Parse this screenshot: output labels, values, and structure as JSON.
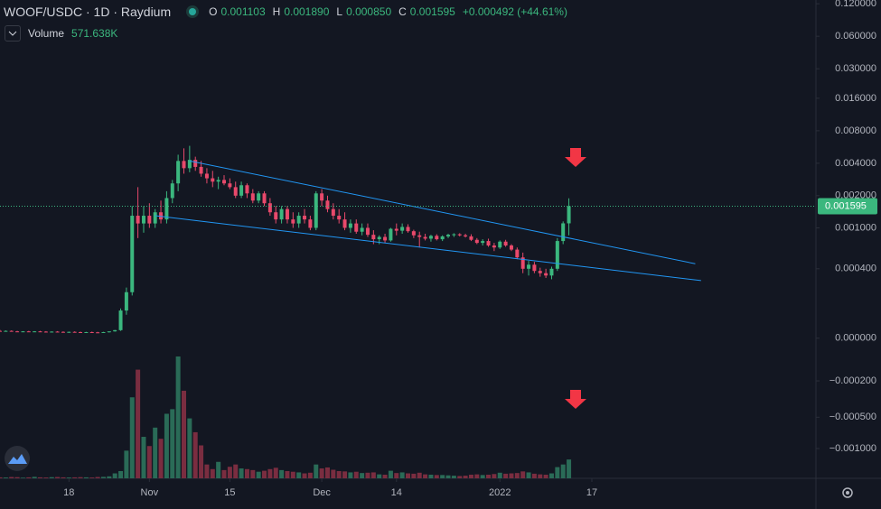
{
  "chart_data": {
    "type": "candlestick",
    "title": "WOOF/USDC · 1D · Raydium",
    "ohlc_letters": [
      "O",
      "H",
      "L",
      "C"
    ],
    "ohlc_labels": [
      "0.001103",
      "0.001890",
      "0.000850",
      "0.001595"
    ],
    "change_label": "+0.000492 (+44.61%)",
    "volume_name": "Volume",
    "volume_label": "571.638K",
    "x": [
      "2021-10-06",
      "2021-10-07",
      "2021-10-08",
      "2021-10-09",
      "2021-10-10",
      "2021-10-11",
      "2021-10-12",
      "2021-10-13",
      "2021-10-14",
      "2021-10-15",
      "2021-10-16",
      "2021-10-17",
      "2021-10-18",
      "2021-10-19",
      "2021-10-20",
      "2021-10-21",
      "2021-10-22",
      "2021-10-23",
      "2021-10-24",
      "2021-10-25",
      "2021-10-26",
      "2021-10-27",
      "2021-10-28",
      "2021-10-29",
      "2021-10-30",
      "2021-10-31",
      "2021-11-01",
      "2021-11-02",
      "2021-11-03",
      "2021-11-04",
      "2021-11-05",
      "2021-11-06",
      "2021-11-07",
      "2021-11-08",
      "2021-11-09",
      "2021-11-10",
      "2021-11-11",
      "2021-11-12",
      "2021-11-13",
      "2021-11-14",
      "2021-11-15",
      "2021-11-16",
      "2021-11-17",
      "2021-11-18",
      "2021-11-19",
      "2021-11-20",
      "2021-11-21",
      "2021-11-22",
      "2021-11-23",
      "2021-11-24",
      "2021-11-25",
      "2021-11-26",
      "2021-11-27",
      "2021-11-28",
      "2021-11-29",
      "2021-11-30",
      "2021-12-01",
      "2021-12-02",
      "2021-12-03",
      "2021-12-04",
      "2021-12-05",
      "2021-12-06",
      "2021-12-07",
      "2021-12-08",
      "2021-12-09",
      "2021-12-10",
      "2021-12-11",
      "2021-12-12",
      "2021-12-13",
      "2021-12-14",
      "2021-12-15",
      "2021-12-16",
      "2021-12-17",
      "2021-12-18",
      "2021-12-19",
      "2021-12-20",
      "2021-12-21",
      "2021-12-22",
      "2021-12-23",
      "2021-12-24",
      "2021-12-25",
      "2021-12-26",
      "2021-12-27",
      "2021-12-28",
      "2021-12-29",
      "2021-12-30",
      "2021-12-31",
      "2022-01-01",
      "2022-01-02",
      "2022-01-03",
      "2022-01-04",
      "2022-01-05",
      "2022-01-06",
      "2022-01-07",
      "2022-01-08",
      "2022-01-09",
      "2022-01-10",
      "2022-01-11",
      "2022-01-12",
      "2022-01-13"
    ],
    "open": [
      3e-05,
      2.9e-05,
      3e-05,
      2.8e-05,
      2.7e-05,
      2.8e-05,
      2.6e-05,
      2.8e-05,
      2.7e-05,
      2.5e-05,
      2.7e-05,
      2.6e-05,
      2.4e-05,
      2.6e-05,
      2.5e-05,
      2.3e-05,
      2.5e-05,
      2.4e-05,
      2.3e-05,
      2.5e-05,
      2.8e-05,
      3.3e-05,
      0.00012,
      0.00022,
      0.0013,
      0.0011,
      0.0013,
      0.0011,
      0.0014,
      0.0012,
      0.0019,
      0.0026,
      0.0042,
      0.0036,
      0.0043,
      0.0037,
      0.0032,
      0.0029,
      0.0027,
      0.0028,
      0.0026,
      0.0024,
      0.002,
      0.0025,
      0.0021,
      0.0018,
      0.0021,
      0.0017,
      0.0014,
      0.0012,
      0.0015,
      0.0012,
      0.0011,
      0.0013,
      0.0012,
      0.001,
      0.0021,
      0.0018,
      0.0015,
      0.0013,
      0.0012,
      0.001,
      0.0011,
      0.00092,
      0.001,
      0.00086,
      0.00078,
      0.00082,
      0.00076,
      0.00098,
      0.00094,
      0.00102,
      0.00093,
      0.00085,
      0.00082,
      0.00079,
      0.00084,
      0.00078,
      0.00083,
      0.00086,
      0.00087,
      0.00085,
      0.00083,
      0.00077,
      0.00072,
      0.00075,
      0.00068,
      0.00065,
      0.00074,
      0.00068,
      0.00062,
      0.00052,
      0.0004,
      0.00044,
      0.00038,
      0.00036,
      0.00034,
      0.0004,
      0.00075,
      0.001103
    ],
    "high": [
      3.4e-05,
      3.2e-05,
      3.2e-05,
      3e-05,
      2.9e-05,
      3e-05,
      2.9e-05,
      3e-05,
      2.9e-05,
      2.8e-05,
      2.9e-05,
      2.8e-05,
      2.7e-05,
      2.8e-05,
      2.7e-05,
      2.6e-05,
      2.7e-05,
      2.6e-05,
      2.6e-05,
      2.7e-05,
      3.4e-05,
      0.00013,
      0.00025,
      0.0016,
      0.0024,
      0.0016,
      0.0017,
      0.0015,
      0.0018,
      0.0022,
      0.0028,
      0.0048,
      0.0055,
      0.0058,
      0.0046,
      0.0042,
      0.0036,
      0.0034,
      0.003,
      0.0031,
      0.0029,
      0.0027,
      0.0027,
      0.0026,
      0.0023,
      0.0022,
      0.0022,
      0.0019,
      0.0016,
      0.0016,
      0.0016,
      0.0014,
      0.0014,
      0.0015,
      0.0013,
      0.0022,
      0.0023,
      0.002,
      0.0017,
      0.0015,
      0.0014,
      0.0012,
      0.0012,
      0.0011,
      0.0011,
      0.00095,
      0.00085,
      0.00088,
      0.001,
      0.0011,
      0.0011,
      0.00108,
      0.00096,
      0.00092,
      0.00088,
      0.00086,
      0.00087,
      0.00085,
      0.00088,
      0.00089,
      0.00089,
      0.00088,
      0.00087,
      0.0008,
      0.00078,
      0.00079,
      0.00072,
      0.00076,
      0.00077,
      0.0007,
      0.00065,
      0.00058,
      0.00048,
      0.00047,
      0.00041,
      0.0004,
      0.00042,
      0.0008,
      0.00115,
      0.00189
    ],
    "low": [
      2.7e-05,
      2.7e-05,
      2.8e-05,
      2.6e-05,
      2.5e-05,
      2.6e-05,
      2.5e-05,
      2.6e-05,
      2.4e-05,
      2.4e-05,
      2.5e-05,
      2.3e-05,
      2.2e-05,
      2.4e-05,
      2.2e-05,
      2.2e-05,
      2.3e-05,
      2.2e-05,
      2.2e-05,
      2.3e-05,
      2.7e-05,
      3e-05,
      0.0001,
      0.0002,
      0.0008,
      0.0009,
      0.001,
      0.001,
      0.0011,
      0.0011,
      0.0017,
      0.0022,
      0.0032,
      0.0033,
      0.0034,
      0.003,
      0.0026,
      0.0024,
      0.0023,
      0.0025,
      0.0023,
      0.0019,
      0.0019,
      0.0019,
      0.0017,
      0.0017,
      0.0016,
      0.0013,
      0.0011,
      0.0011,
      0.0011,
      0.001,
      0.001,
      0.0011,
      0.00095,
      0.00095,
      0.0016,
      0.0014,
      0.0012,
      0.0011,
      0.00095,
      0.0009,
      0.00088,
      0.00085,
      0.00082,
      0.0007,
      0.0007,
      0.00072,
      0.00074,
      0.00085,
      0.00088,
      0.0009,
      0.0008,
      0.00065,
      0.00076,
      0.00074,
      0.00076,
      0.00075,
      0.0008,
      0.00082,
      0.00083,
      0.00081,
      0.00075,
      0.0007,
      0.00068,
      0.00066,
      0.0006,
      0.00063,
      0.00066,
      0.0006,
      0.0005,
      0.00036,
      0.00034,
      0.00036,
      0.00033,
      0.00032,
      0.00031,
      0.00038,
      0.0007,
      0.00085
    ],
    "close": [
      2.9e-05,
      3e-05,
      2.8e-05,
      2.7e-05,
      2.8e-05,
      2.6e-05,
      2.8e-05,
      2.7e-05,
      2.5e-05,
      2.7e-05,
      2.6e-05,
      2.4e-05,
      2.6e-05,
      2.5e-05,
      2.3e-05,
      2.5e-05,
      2.4e-05,
      2.3e-05,
      2.5e-05,
      2.8e-05,
      3.3e-05,
      0.00012,
      0.00022,
      0.0013,
      0.0011,
      0.0013,
      0.0011,
      0.0014,
      0.0012,
      0.0019,
      0.0026,
      0.0042,
      0.0036,
      0.0043,
      0.0037,
      0.0032,
      0.0029,
      0.0027,
      0.0028,
      0.0026,
      0.0024,
      0.002,
      0.0025,
      0.0021,
      0.0018,
      0.0021,
      0.0017,
      0.0014,
      0.0012,
      0.0015,
      0.0012,
      0.0011,
      0.0013,
      0.0012,
      0.001,
      0.0021,
      0.0018,
      0.0015,
      0.0013,
      0.0012,
      0.001,
      0.0011,
      0.00092,
      0.001,
      0.00086,
      0.00078,
      0.00082,
      0.00076,
      0.00098,
      0.00094,
      0.00102,
      0.00093,
      0.00085,
      0.00082,
      0.00079,
      0.00084,
      0.00078,
      0.00083,
      0.00086,
      0.00087,
      0.00085,
      0.00083,
      0.00077,
      0.00072,
      0.00075,
      0.00068,
      0.00065,
      0.00074,
      0.00068,
      0.00062,
      0.00052,
      0.0004,
      0.00044,
      0.00038,
      0.00036,
      0.00034,
      0.0004,
      0.00075,
      0.001103,
      0.001595
    ],
    "volume": [
      30000,
      25000,
      40000,
      35000,
      20000,
      30000,
      45000,
      30000,
      25000,
      35000,
      40000,
      30000,
      25000,
      30000,
      35000,
      30000,
      25000,
      40000,
      45000,
      60000,
      150000,
      220000,
      840000,
      2460000,
      3300000,
      1260000,
      980000,
      1540000,
      1200000,
      1960000,
      2100000,
      3700000,
      2660000,
      1820000,
      1400000,
      1000000,
      420000,
      280000,
      500000,
      250000,
      350000,
      420000,
      300000,
      280000,
      250000,
      200000,
      230000,
      280000,
      320000,
      250000,
      220000,
      200000,
      180000,
      150000,
      170000,
      420000,
      300000,
      330000,
      260000,
      220000,
      210000,
      180000,
      200000,
      160000,
      170000,
      180000,
      120000,
      110000,
      230000,
      160000,
      180000,
      150000,
      140000,
      170000,
      120000,
      110000,
      100000,
      100000,
      90000,
      80000,
      70000,
      80000,
      110000,
      120000,
      100000,
      110000,
      130000,
      170000,
      140000,
      150000,
      160000,
      210000,
      180000,
      140000,
      120000,
      110000,
      150000,
      340000,
      420000,
      571638
    ],
    "up_color": "#3bb77e",
    "down_color": "#e8496b",
    "volume_up_color": "#2a6b57",
    "volume_down_color": "#7a2d40",
    "y_scale": "symlog",
    "ylim": [
      -0.0019,
      0.13
    ],
    "yticks": [
      {
        "value": 0.12,
        "label": "0.120000"
      },
      {
        "value": 0.06,
        "label": "0.060000"
      },
      {
        "value": 0.03,
        "label": "0.030000"
      },
      {
        "value": 0.016,
        "label": "0.016000"
      },
      {
        "value": 0.008,
        "label": "0.008000"
      },
      {
        "value": 0.004,
        "label": "0.004000"
      },
      {
        "value": 0.002,
        "label": "0.002000"
      },
      {
        "value": 0.001,
        "label": "0.001000"
      },
      {
        "value": 0.0004,
        "label": "0.000400"
      },
      {
        "value": 0,
        "label": "0.000000"
      },
      {
        "value": -0.0002,
        "label": "−0.000200"
      },
      {
        "value": -0.0005,
        "label": "−0.000500"
      },
      {
        "value": -0.001,
        "label": "−0.001000"
      }
    ],
    "xlim": [
      "2021-10-06",
      "2022-02-25"
    ],
    "xticks": [
      {
        "value": "2021-10-18",
        "label": "18"
      },
      {
        "value": "2021-11-01",
        "label": "Nov"
      },
      {
        "value": "2021-11-15",
        "label": "15"
      },
      {
        "value": "2021-12-01",
        "label": "Dec"
      },
      {
        "value": "2021-12-14",
        "label": "14"
      },
      {
        "value": "2022-01-01",
        "label": "2022"
      },
      {
        "value": "2022-01-17",
        "label": "17"
      }
    ],
    "trendlines": [
      {
        "x": [
          "2021-11-08",
          "2022-02-04"
        ],
        "y": [
          0.0042,
          0.00045
        ]
      },
      {
        "x": [
          "2021-11-02",
          "2022-02-05"
        ],
        "y": [
          0.0013,
          0.0003
        ]
      }
    ],
    "trendline_color": "#2196f3",
    "grid": false
  }
}
